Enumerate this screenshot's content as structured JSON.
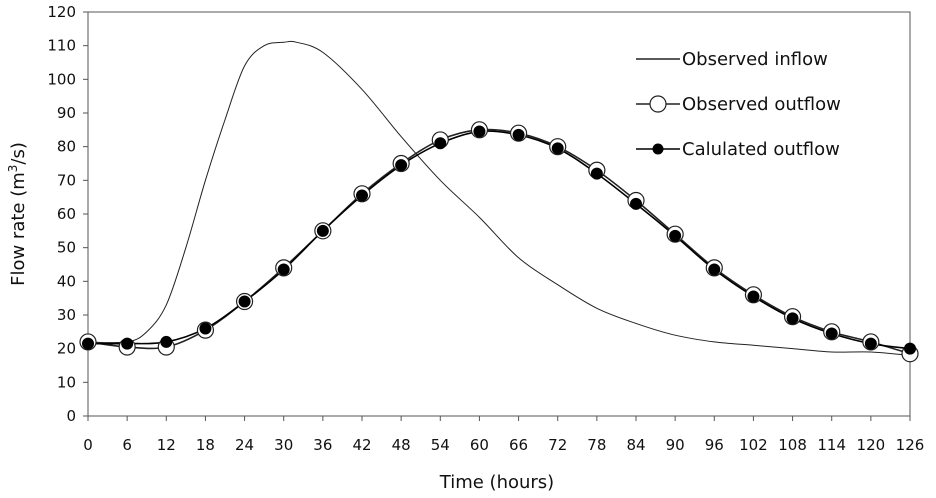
{
  "chart_data": {
    "type": "line",
    "xlabel": "Time (hours)",
    "ylabel_parts": [
      "Flow rate (m",
      "3",
      "/s)"
    ],
    "xlim": [
      0,
      126
    ],
    "ylim": [
      0,
      120
    ],
    "x_ticks": [
      0,
      6,
      12,
      18,
      24,
      30,
      36,
      42,
      48,
      54,
      60,
      66,
      72,
      78,
      84,
      90,
      96,
      102,
      108,
      114,
      120,
      126
    ],
    "y_ticks": [
      0,
      10,
      20,
      30,
      40,
      50,
      60,
      70,
      80,
      90,
      100,
      110,
      120
    ],
    "grid": false,
    "legend_position": "top-right",
    "series": [
      {
        "name": "Observed inflow",
        "marker": "none",
        "color": "#222222",
        "x": [
          0,
          6,
          9,
          12,
          15,
          18,
          21,
          24,
          27,
          30,
          32,
          36,
          42,
          48,
          54,
          60,
          66,
          72,
          78,
          84,
          90,
          96,
          102,
          108,
          114,
          120,
          126
        ],
        "values": [
          22,
          22,
          25,
          33,
          50,
          70,
          88,
          104,
          110,
          111,
          111,
          108,
          97,
          83,
          70,
          59,
          47,
          39,
          32,
          27.5,
          24,
          22,
          21,
          20,
          19,
          19,
          18
        ]
      },
      {
        "name": "Observed outflow",
        "marker": "open-circle",
        "color": "#222222",
        "x": [
          0,
          6,
          12,
          18,
          24,
          30,
          36,
          42,
          48,
          54,
          60,
          66,
          72,
          78,
          84,
          90,
          96,
          102,
          108,
          114,
          120,
          126
        ],
        "values": [
          22,
          20.5,
          20.5,
          25.5,
          34,
          44,
          55,
          66,
          75,
          82,
          85,
          84,
          80,
          73,
          64,
          54,
          44,
          36,
          29.5,
          25,
          22,
          18.5
        ]
      },
      {
        "name": "Calulated outflow",
        "marker": "filled-circle",
        "color": "#000000",
        "x": [
          0,
          6,
          12,
          18,
          24,
          30,
          36,
          42,
          48,
          54,
          60,
          66,
          72,
          78,
          84,
          90,
          96,
          102,
          108,
          114,
          120,
          126
        ],
        "values": [
          21.5,
          21.5,
          22,
          26,
          34,
          43.5,
          55,
          65.5,
          74.5,
          81,
          84.5,
          83.5,
          79.5,
          72,
          63,
          53.5,
          43.5,
          35.5,
          29,
          24.5,
          21.5,
          20
        ]
      }
    ]
  }
}
